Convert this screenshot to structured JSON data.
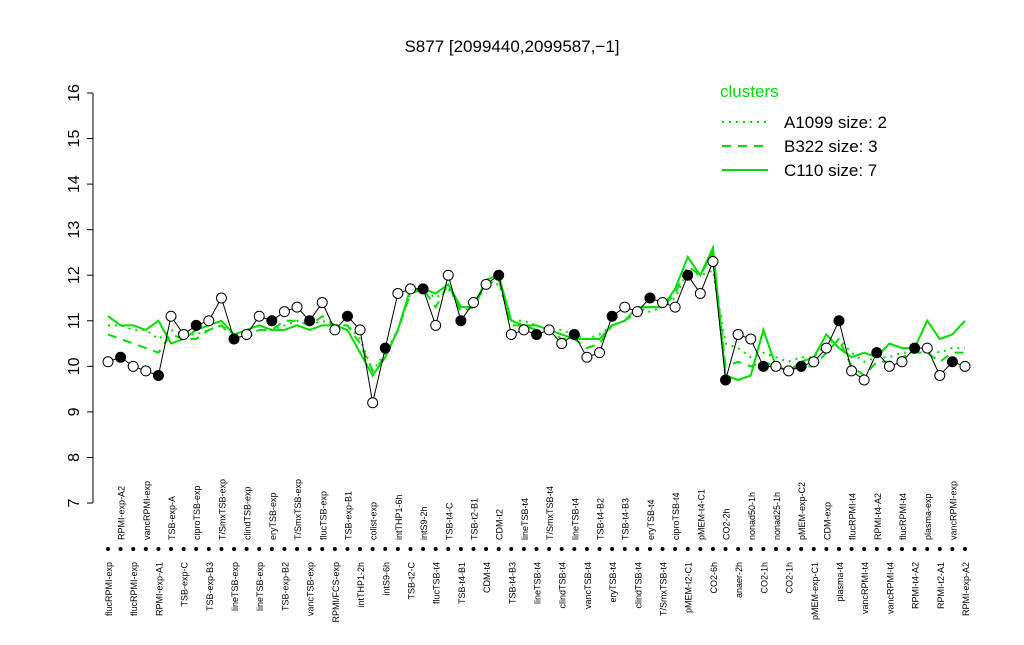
{
  "chart_data": {
    "type": "line",
    "title": "S877 [2099440,2099587,−1]",
    "categories": [
      "flucRPMI-exp",
      "RPMI-exp-A2",
      "flucRPMI-exp",
      "vancRPMI-exp",
      "RPMI-exp-A1",
      "TSB-exp-A",
      "TSB-exp-C",
      "ciproTSB-exp",
      "TSB-exp-B3",
      "T/SmxTSB-exp",
      "lineTSB-exp",
      "clindTSB-exp",
      "lineTSB-exp",
      "eryTSB-exp",
      "TSB-exp-B2",
      "T/SmxTSB-exp",
      "vancTSB-exp",
      "flucTSB-exp",
      "RPMI/FCS-exp",
      "TSB-exp-B1",
      "intTHP1-2h",
      "colist-exp",
      "intS9-6h",
      "intTHP1-6h",
      "TSB-t2-C",
      "intS9-2h",
      "flucTSB-t4",
      "TSB-t4-C",
      "TSB-t4-B1",
      "TSB-t2-B1",
      "CDM-t4",
      "CDM-t2",
      "TSB-t4-B3",
      "lineTSB-t4",
      "lineTSB-t4",
      "T/SmxTSB-t4",
      "clindTSB-t4",
      "lineTSB-t4",
      "vancTSB-t4",
      "TSB-t4-B2",
      "eryTSB-t4",
      "TSB-t4-B3",
      "clindTSB-t4",
      "eryTSB-t4",
      "T/SmxTSB-t4",
      "ciproTSB-t4",
      "pMEM-t2-C1",
      "pMEM-t4-C1",
      "CO2-6h",
      "CO2-2h",
      "anaer-2h",
      "nonad50-1h",
      "CO2-1h",
      "nonad25-1h",
      "CO2-1h",
      "pMEM-exp-C2",
      "pMEM-exp-C1",
      "CDM-exp",
      "plasma-t4",
      "flucRPMI-t4",
      "vancRPMI-t4",
      "RPMI-t4-A2",
      "vancRPMI-t4",
      "flucRPMI-t4",
      "RPMI-t4-A2",
      "plasma-exp",
      "RPMI-t2-A1",
      "vancRPMI-exp",
      "RPMI-exp-A2"
    ],
    "values": [
      10.1,
      10.2,
      10.0,
      9.9,
      9.8,
      11.1,
      10.7,
      10.9,
      11.0,
      11.5,
      10.6,
      10.7,
      11.1,
      11.0,
      11.2,
      11.3,
      11.0,
      11.4,
      10.8,
      11.1,
      10.8,
      9.2,
      10.4,
      11.6,
      11.7,
      11.7,
      10.9,
      12.0,
      11.0,
      11.4,
      11.8,
      12.0,
      10.7,
      10.8,
      10.7,
      10.8,
      10.5,
      10.7,
      10.2,
      10.3,
      11.1,
      11.3,
      11.2,
      11.5,
      11.4,
      11.3,
      12.0,
      11.6,
      12.3,
      9.7,
      10.7,
      10.6,
      10.0,
      10.0,
      9.9,
      10.0,
      10.1,
      10.4,
      11.0,
      9.9,
      9.7,
      10.3,
      10.0,
      10.1,
      10.4,
      10.4,
      9.8,
      10.1,
      10.0
    ],
    "legend_title": "clusters",
    "series": [
      {
        "name": "A1099 size: 2",
        "color": "#00dd00",
        "dash": "dotted",
        "values": [
          10.9,
          10.9,
          10.8,
          10.8,
          10.6,
          10.8,
          10.7,
          10.7,
          10.8,
          10.9,
          10.7,
          10.7,
          10.8,
          10.8,
          10.9,
          11.0,
          10.9,
          11.0,
          10.9,
          10.9,
          10.6,
          9.9,
          10.3,
          10.8,
          11.6,
          11.7,
          11.5,
          11.7,
          11.3,
          11.3,
          11.8,
          11.8,
          11.0,
          11.0,
          10.9,
          10.8,
          10.8,
          10.7,
          10.6,
          10.7,
          10.9,
          11.0,
          11.2,
          11.2,
          11.3,
          11.5,
          12.1,
          12.0,
          12.1,
          10.5,
          10.4,
          10.2,
          10.3,
          10.2,
          10.1,
          10.2,
          10.2,
          10.5,
          10.6,
          10.3,
          10.1,
          10.2,
          10.2,
          10.3,
          10.3,
          10.4,
          10.3,
          10.4,
          10.4
        ]
      },
      {
        "name": "B322 size: 3",
        "color": "#00dd00",
        "dash": "dashed",
        "values": [
          10.7,
          10.6,
          10.5,
          10.4,
          10.3,
          10.7,
          10.6,
          10.6,
          10.8,
          10.9,
          10.6,
          10.6,
          10.8,
          10.8,
          11.0,
          11.0,
          10.9,
          11.1,
          10.9,
          10.9,
          10.5,
          9.9,
          10.2,
          10.8,
          11.6,
          11.7,
          11.3,
          11.8,
          11.2,
          11.3,
          11.8,
          11.9,
          10.9,
          10.9,
          10.8,
          10.8,
          10.6,
          10.6,
          10.4,
          10.5,
          10.9,
          11.0,
          11.2,
          11.3,
          11.3,
          11.6,
          12.2,
          12.0,
          12.5,
          10.0,
          10.1,
          10.0,
          10.1,
          10.0,
          9.9,
          10.0,
          10.0,
          10.3,
          10.6,
          10.0,
          9.8,
          10.1,
          10.1,
          10.2,
          10.3,
          10.3,
          10.1,
          10.3,
          10.3
        ]
      },
      {
        "name": "C110 size: 7",
        "color": "#00dd00",
        "dash": "solid",
        "values": [
          11.1,
          10.9,
          10.9,
          10.8,
          11.0,
          10.5,
          10.6,
          10.8,
          10.9,
          11.0,
          10.7,
          10.8,
          10.9,
          10.8,
          10.8,
          10.9,
          10.8,
          10.9,
          10.9,
          10.8,
          10.3,
          9.8,
          10.2,
          10.8,
          11.7,
          11.7,
          11.6,
          11.8,
          11.3,
          11.3,
          11.9,
          12.0,
          11.0,
          10.9,
          10.9,
          10.8,
          10.7,
          10.6,
          10.6,
          10.6,
          10.9,
          11.0,
          11.3,
          11.3,
          11.3,
          11.7,
          12.4,
          12.0,
          12.6,
          9.8,
          9.7,
          9.8,
          10.8,
          10.0,
          9.9,
          10.1,
          10.2,
          10.7,
          10.4,
          10.2,
          10.3,
          10.2,
          10.5,
          10.4,
          10.4,
          11.0,
          10.6,
          10.7,
          11.0
        ]
      }
    ],
    "ylim": [
      7,
      16
    ],
    "yticks": [
      7,
      8,
      9,
      10,
      11,
      12,
      13,
      14,
      15,
      16
    ]
  }
}
